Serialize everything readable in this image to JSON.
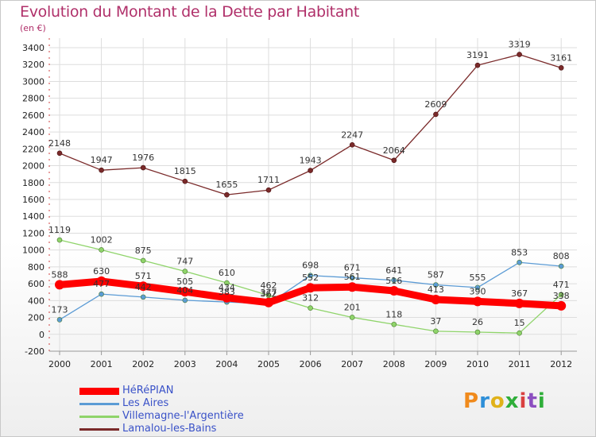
{
  "title": "Evolution du Montant de la Dette par Habitant",
  "subtitle": "(en €)",
  "logo": {
    "text": "Proxiti",
    "colors": [
      "#f08a1c",
      "#2e8fd8",
      "#e0b21a",
      "#2fae3a",
      "#d94040",
      "#8c4fc0",
      "#2fae3a"
    ]
  },
  "chart_data": {
    "type": "line",
    "x": [
      "2000",
      "2001",
      "2002",
      "2003",
      "2004",
      "2005",
      "2006",
      "2007",
      "2008",
      "2009",
      "2010",
      "2011",
      "2012"
    ],
    "y_ticks": [
      "-200",
      "0",
      "200",
      "400",
      "600",
      "800",
      "1000",
      "1200",
      "1400",
      "1600",
      "1800",
      "2000",
      "2200",
      "2400",
      "2600",
      "2800",
      "3000",
      "3200",
      "3400"
    ],
    "ylim": [
      -200,
      3400
    ],
    "grid": true,
    "legend_position": "bottom-left",
    "series": [
      {
        "name": "HéRéPIAN",
        "color": "#ff0000",
        "values": [
          588,
          630,
          571,
          505,
          434,
          377,
          552,
          561,
          516,
          413,
          390,
          367,
          338
        ],
        "labels": [
          "588",
          "630",
          "571",
          "505",
          "434",
          "377",
          "552",
          "561",
          "516",
          "413",
          "390",
          "367",
          "338"
        ]
      },
      {
        "name": "Les Aires",
        "color": "#5b9bd5",
        "values": [
          173,
          477,
          442,
          404,
          383,
          362,
          698,
          671,
          641,
          587,
          555,
          853,
          808
        ],
        "labels": [
          "173",
          "477",
          "442",
          "404",
          "383",
          "362",
          "698",
          "671",
          "641",
          "587",
          "555",
          "853",
          "808"
        ]
      },
      {
        "name": "Villemagne-l'Argentière",
        "color": "#8fd46a",
        "values": [
          1119,
          1002,
          875,
          747,
          610,
          462,
          312,
          201,
          118,
          37,
          26,
          15,
          471
        ],
        "labels": [
          "1119",
          "1002",
          "875",
          "747",
          "610",
          "462",
          "312",
          "201",
          "118",
          "37",
          "26",
          "15",
          "471"
        ]
      },
      {
        "name": "Lamalou-les-Bains",
        "color": "#7a2a2a",
        "values": [
          2148,
          1947,
          1976,
          1815,
          1655,
          1711,
          1943,
          2247,
          2064,
          2609,
          3191,
          3319,
          3161
        ],
        "labels": [
          "2148",
          "1947",
          "1976",
          "1815",
          "1655",
          "1711",
          "1943",
          "2247",
          "2064",
          "2609",
          "3191",
          "3319",
          "3161"
        ]
      }
    ]
  }
}
